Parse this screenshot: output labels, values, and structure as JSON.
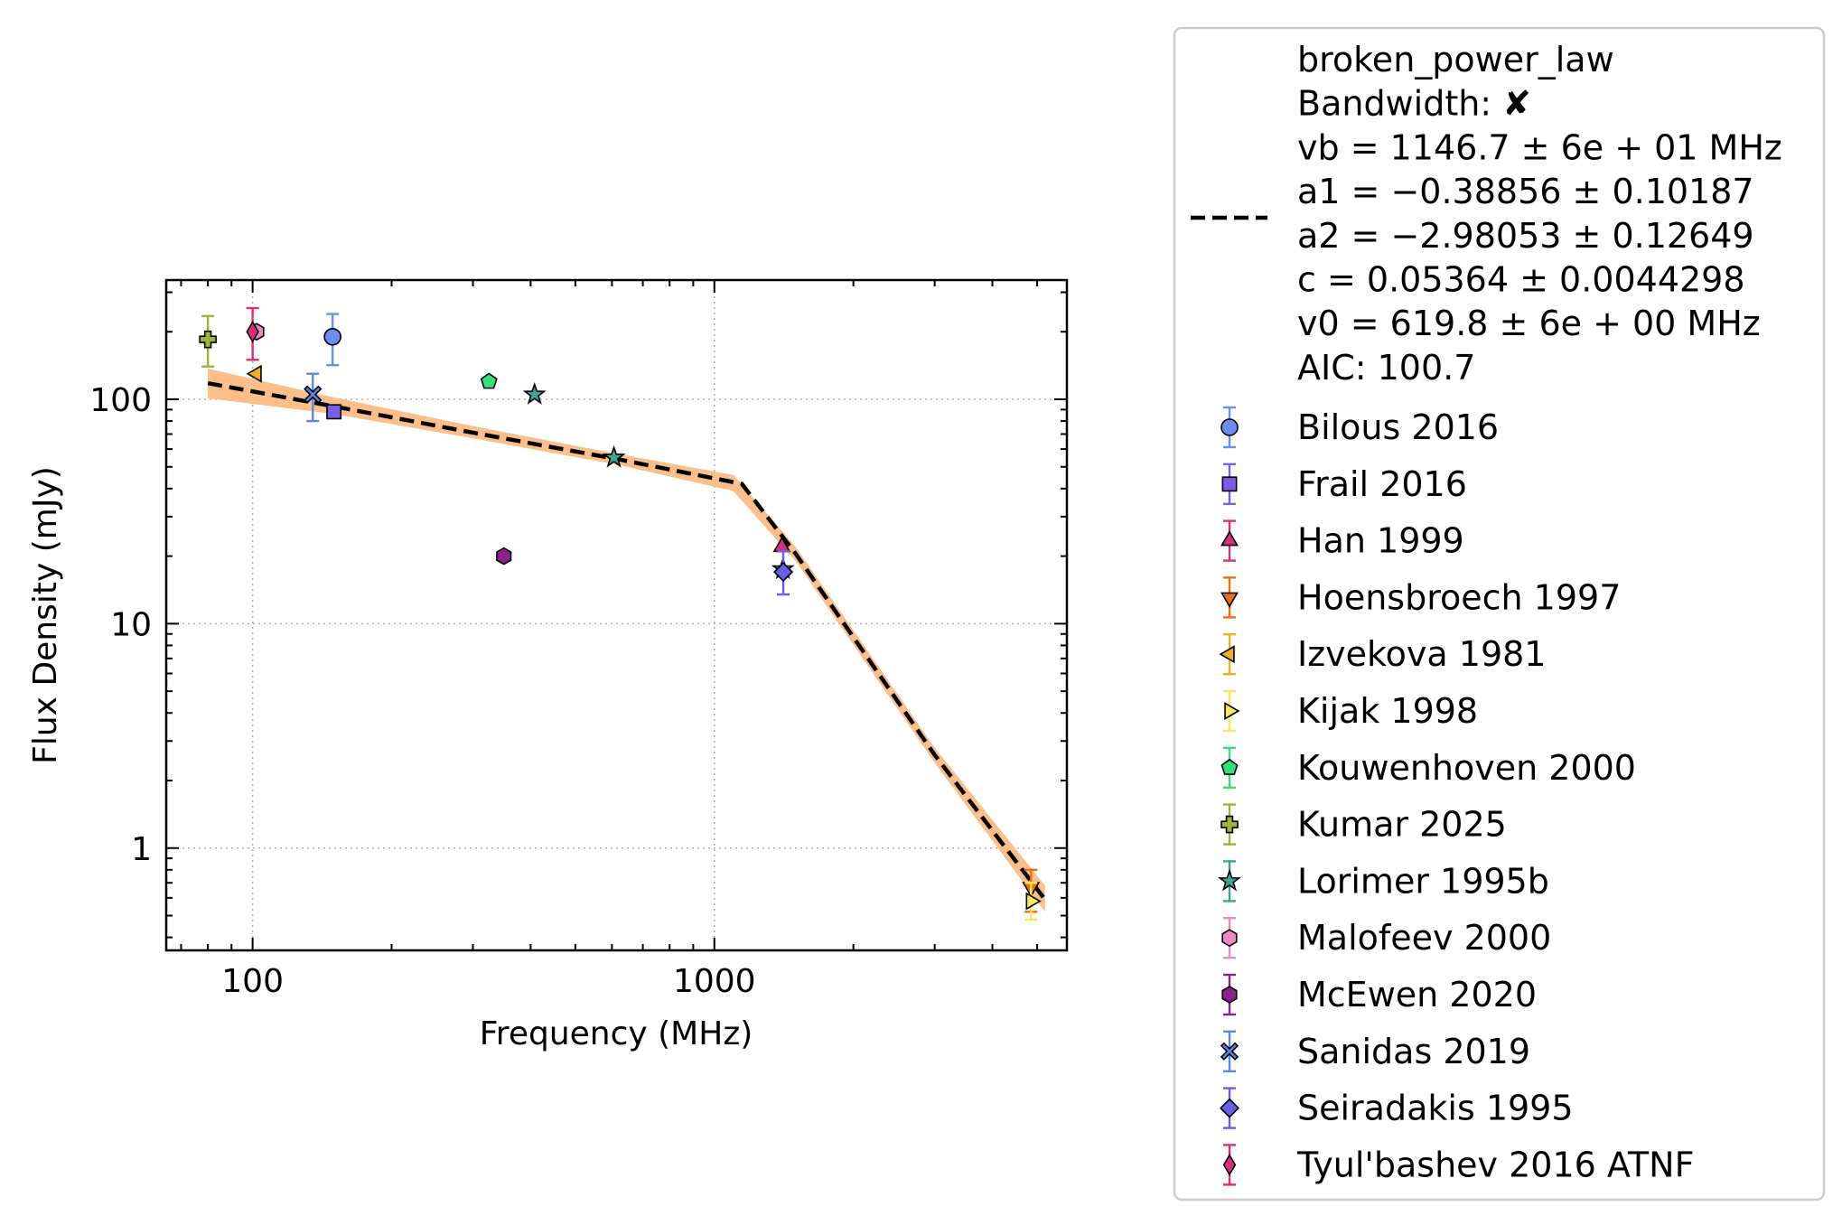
{
  "chart_data": {
    "type": "scatter",
    "xlabel": "Frequency (MHz)",
    "ylabel": "Flux Density (mJy)",
    "xscale": "log",
    "yscale": "log",
    "xlim": [
      65,
      5800
    ],
    "ylim": [
      0.35,
      340
    ],
    "xticks": [
      {
        "value": 100,
        "label": "100"
      },
      {
        "value": 1000,
        "label": "1000"
      }
    ],
    "yticks": [
      {
        "value": 1,
        "label": "1"
      },
      {
        "value": 10,
        "label": "10"
      },
      {
        "value": 100,
        "label": "100"
      }
    ],
    "grid": true,
    "legend_position": "outside right",
    "fit": {
      "model": "broken_power_law",
      "lines": [
        "broken_power_law",
        "Bandwidth: ✘",
        "vb = 1146.7 ± 6e + 01 MHz",
        "a1 = −0.38856 ± 0.10187",
        "a2 = −2.98053 ± 0.12649",
        "c = 0.05364 ± 0.0044298",
        "v0 = 619.8 ± 6e + 00 MHz",
        "AIC: 100.7"
      ],
      "line_color": "#000000",
      "band_color": "#fdbf8a",
      "curve": [
        [
          80,
          118
        ],
        [
          150,
          93
        ],
        [
          300,
          71
        ],
        [
          620,
          54
        ],
        [
          1146.7,
          42
        ],
        [
          1500,
          20.5
        ],
        [
          3000,
          2.6
        ],
        [
          5200,
          0.59
        ]
      ],
      "band_upper": [
        [
          80,
          137
        ],
        [
          150,
          102
        ],
        [
          300,
          76
        ],
        [
          620,
          57
        ],
        [
          1100,
          46
        ],
        [
          1500,
          22
        ],
        [
          3000,
          2.8
        ],
        [
          5200,
          0.68
        ]
      ],
      "band_lower": [
        [
          80,
          101
        ],
        [
          150,
          86
        ],
        [
          300,
          67
        ],
        [
          620,
          51
        ],
        [
          1100,
          39
        ],
        [
          1500,
          19
        ],
        [
          3000,
          2.4
        ],
        [
          5200,
          0.52
        ]
      ]
    },
    "series": [
      {
        "name": "Bilous 2016",
        "marker": "circle",
        "color": "#6b8ef2",
        "points": [
          {
            "x": 149,
            "y": 190,
            "err": [
              142,
              240
            ]
          }
        ]
      },
      {
        "name": "Frail 2016",
        "marker": "square",
        "color": "#7b5ee8",
        "points": [
          {
            "x": 150,
            "y": 88,
            "err": null
          }
        ]
      },
      {
        "name": "Han 1999",
        "marker": "triangle-up",
        "color": "#d6307a",
        "points": [
          {
            "x": 1400,
            "y": 22,
            "err": null
          }
        ]
      },
      {
        "name": "Hoensbroech 1997",
        "marker": "triangle-down",
        "color": "#f06d0f",
        "points": [
          {
            "x": 4850,
            "y": 0.67,
            "err": [
              0.52,
              0.8
            ]
          }
        ]
      },
      {
        "name": "Izvekova 1981",
        "marker": "triangle-left",
        "color": "#f2b01c",
        "points": [
          {
            "x": 102,
            "y": 130,
            "err": null
          }
        ]
      },
      {
        "name": "Kijak 1998",
        "marker": "triangle-right",
        "color": "#f7e85a",
        "points": [
          {
            "x": 4850,
            "y": 0.58,
            "err": [
              0.48,
              0.7
            ]
          }
        ]
      },
      {
        "name": "Kouwenhoven 2000",
        "marker": "pentagon",
        "color": "#33e07a",
        "points": [
          {
            "x": 325,
            "y": 120,
            "err": null
          }
        ]
      },
      {
        "name": "Kumar 2025",
        "marker": "plus",
        "color": "#9cb438",
        "points": [
          {
            "x": 80,
            "y": 185,
            "err": [
              140,
              235
            ]
          }
        ]
      },
      {
        "name": "Lorimer 1995b",
        "marker": "star",
        "color": "#3aa693",
        "points": [
          {
            "x": 408,
            "y": 105,
            "err": null
          },
          {
            "x": 606,
            "y": 55,
            "err": null
          },
          {
            "x": 1408,
            "y": 17.5,
            "err": null
          }
        ]
      },
      {
        "name": "Malofeev 2000",
        "marker": "hexagon",
        "color": "#ee88c2",
        "points": [
          {
            "x": 102,
            "y": 200,
            "err": null
          }
        ]
      },
      {
        "name": "McEwen 2020",
        "marker": "hexagon",
        "color": "#8b228c",
        "points": [
          {
            "x": 350,
            "y": 20,
            "err": null
          }
        ]
      },
      {
        "name": "Sanidas 2019",
        "marker": "x",
        "color": "#5c87e6",
        "points": [
          {
            "x": 135,
            "y": 105,
            "err": [
              80,
              130
            ]
          }
        ]
      },
      {
        "name": "Seiradakis 1995",
        "marker": "diamond",
        "color": "#6a5ee6",
        "points": [
          {
            "x": 1410,
            "y": 17,
            "err": [
              13.5,
              21
            ]
          }
        ]
      },
      {
        "name": "Tyul'bashev 2016 ATNF",
        "marker": "thin-diamond",
        "color": "#e02b7a",
        "points": [
          {
            "x": 100,
            "y": 200,
            "err": [
              150,
              255
            ]
          }
        ]
      }
    ]
  }
}
